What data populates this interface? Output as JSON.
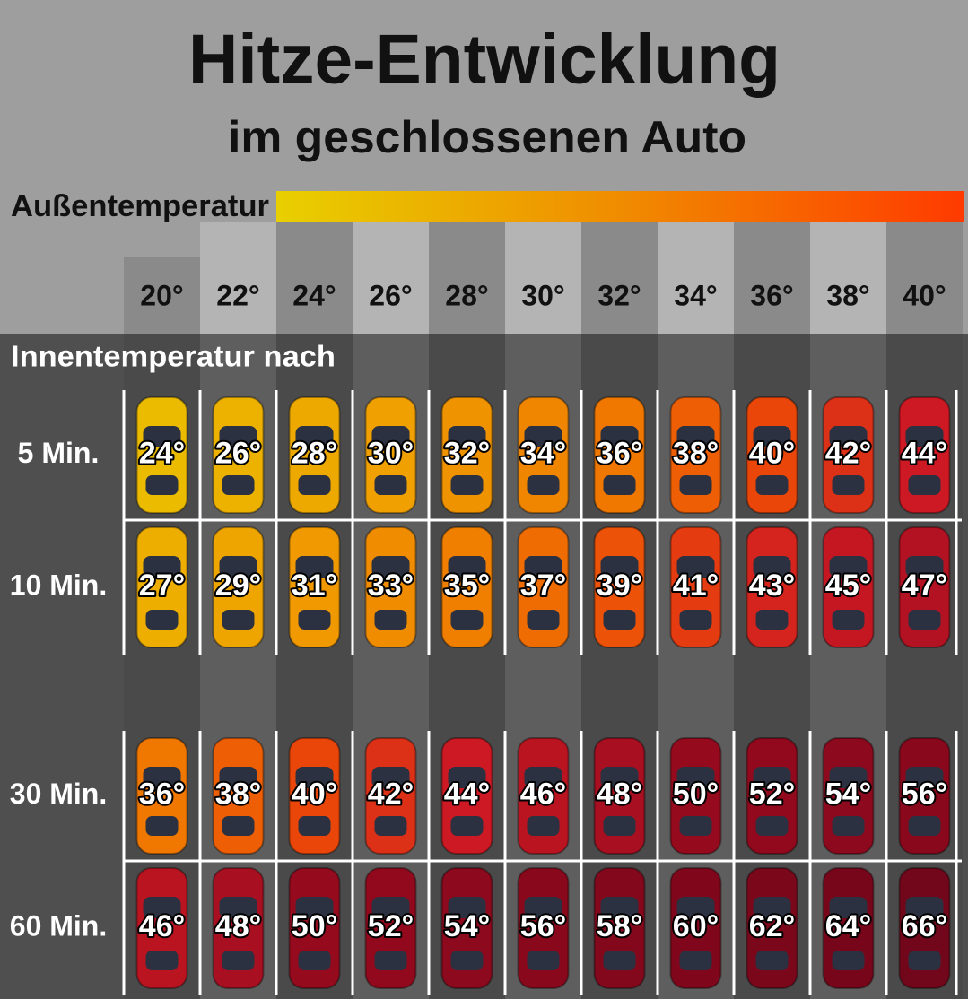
{
  "title": "Hitze-Entwicklung",
  "subtitle": "im geschlossenen Auto",
  "legend_label": "Außentemperatur",
  "columns": [
    "20°",
    "22°",
    "24°",
    "26°",
    "28°",
    "30°",
    "32°",
    "34°",
    "36°",
    "38°",
    "40°"
  ],
  "row_header": "Innentemperatur nach",
  "rows": [
    {
      "label": "5 Min.",
      "cells": [
        "24°",
        "26°",
        "28°",
        "30°",
        "32°",
        "34°",
        "36°",
        "38°",
        "40°",
        "42°",
        "44°"
      ]
    },
    {
      "label": "10 Min.",
      "cells": [
        "27°",
        "29°",
        "31°",
        "33°",
        "35°",
        "37°",
        "39°",
        "41°",
        "43°",
        "45°",
        "47°"
      ]
    },
    {
      "label": "30 Min.",
      "cells": [
        "36°",
        "38°",
        "40°",
        "42°",
        "44°",
        "46°",
        "48°",
        "50°",
        "52°",
        "54°",
        "56°"
      ]
    },
    {
      "label": "60 Min.",
      "cells": [
        "46°",
        "48°",
        "50°",
        "52°",
        "54°",
        "56°",
        "58°",
        "60°",
        "62°",
        "64°",
        "66°"
      ]
    }
  ]
}
